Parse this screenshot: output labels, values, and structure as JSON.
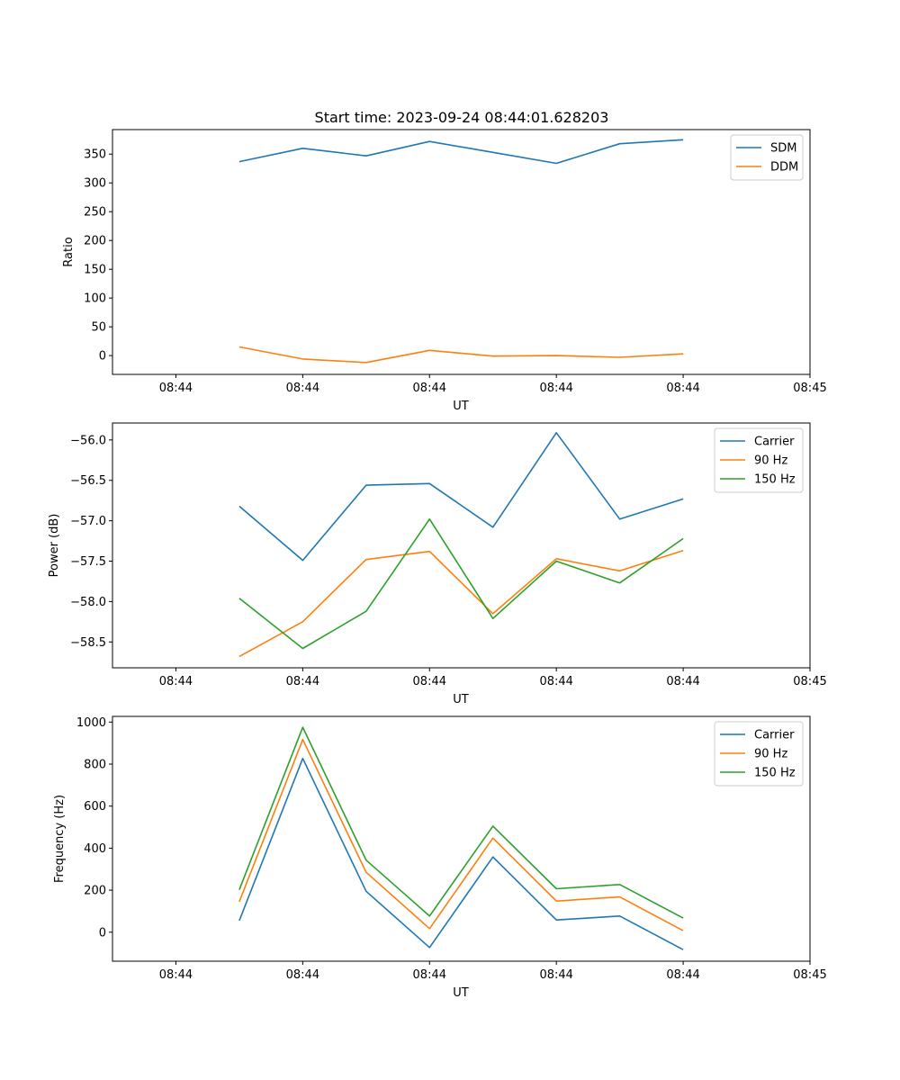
{
  "figure_title": "Start time: 2023-09-24 08:44:01.628203",
  "colors": {
    "blue": "#1f77b4",
    "orange": "#ff7f0e",
    "green": "#2ca02c"
  },
  "chart_data": [
    {
      "type": "line",
      "title": "Start time: 2023-09-24 08:44:01.628203",
      "xlabel": "UT",
      "ylabel": "Ratio",
      "x": [
        0.5,
        1.0,
        1.5,
        2.0,
        2.5,
        3.0,
        3.5,
        4.0
      ],
      "xlim": [
        -0.5,
        5.0
      ],
      "xticks": [
        0,
        1,
        2,
        3,
        4,
        5
      ],
      "xtick_labels": [
        "08:44",
        "08:44",
        "08:44",
        "08:44",
        "08:44",
        "08:45"
      ],
      "ylim": [
        -32.7,
        392.6
      ],
      "yticks": [
        0,
        50,
        100,
        150,
        200,
        250,
        300,
        350
      ],
      "ytick_labels": [
        "0",
        "50",
        "100",
        "150",
        "200",
        "250",
        "300",
        "350"
      ],
      "legend_position": "top-right",
      "grid": false,
      "series": [
        {
          "name": "SDM",
          "color": "#1f77b4",
          "values": [
            337,
            360,
            347,
            372,
            353,
            334,
            368,
            375
          ]
        },
        {
          "name": "DDM",
          "color": "#ff7f0e",
          "values": [
            15,
            -6,
            -12,
            9,
            -1,
            0,
            -3,
            3
          ]
        }
      ]
    },
    {
      "type": "line",
      "title": "",
      "xlabel": "UT",
      "ylabel": "Power (dB)",
      "x": [
        0.5,
        1.0,
        1.5,
        2.0,
        2.5,
        3.0,
        3.5,
        4.0
      ],
      "xlim": [
        -0.5,
        5.0
      ],
      "xticks": [
        0,
        1,
        2,
        3,
        4,
        5
      ],
      "xtick_labels": [
        "08:44",
        "08:44",
        "08:44",
        "08:44",
        "08:44",
        "08:45"
      ],
      "ylim": [
        -58.82,
        -55.79
      ],
      "yticks": [
        -58.5,
        -58.0,
        -57.5,
        -57.0,
        -56.5,
        -56.0
      ],
      "ytick_labels": [
        "−58.5",
        "−58.0",
        "−57.5",
        "−57.0",
        "−56.5",
        "−56.0"
      ],
      "legend_position": "top-right",
      "grid": false,
      "series": [
        {
          "name": "Carrier",
          "color": "#1f77b4",
          "values": [
            -56.82,
            -57.49,
            -56.56,
            -56.54,
            -57.08,
            -55.91,
            -56.98,
            -56.73
          ]
        },
        {
          "name": "90 Hz",
          "color": "#ff7f0e",
          "values": [
            -58.68,
            -58.25,
            -57.48,
            -57.38,
            -58.15,
            -57.47,
            -57.62,
            -57.37
          ]
        },
        {
          "name": "150 Hz",
          "color": "#2ca02c",
          "values": [
            -57.96,
            -58.58,
            -58.12,
            -56.98,
            -58.21,
            -57.5,
            -57.77,
            -57.22
          ]
        }
      ]
    },
    {
      "type": "line",
      "title": "",
      "xlabel": "UT",
      "ylabel": "Frequency (Hz)",
      "x": [
        0.5,
        1.0,
        1.5,
        2.0,
        2.5,
        3.0,
        3.5,
        4.0
      ],
      "xlim": [
        -0.5,
        5.0
      ],
      "xticks": [
        0,
        1,
        2,
        3,
        4,
        5
      ],
      "xtick_labels": [
        "08:44",
        "08:44",
        "08:44",
        "08:44",
        "08:44",
        "08:45"
      ],
      "ylim": [
        -138,
        1027
      ],
      "yticks": [
        0,
        200,
        400,
        600,
        800,
        1000
      ],
      "ytick_labels": [
        "0",
        "200",
        "400",
        "600",
        "800",
        "1000"
      ],
      "legend_position": "top-right",
      "grid": false,
      "series": [
        {
          "name": "Carrier",
          "color": "#1f77b4",
          "values": [
            55,
            827,
            195,
            -73,
            358,
            58,
            77,
            -83
          ]
        },
        {
          "name": "90 Hz",
          "color": "#ff7f0e",
          "values": [
            145,
            917,
            285,
            17,
            448,
            148,
            168,
            7
          ]
        },
        {
          "name": "150 Hz",
          "color": "#2ca02c",
          "values": [
            202,
            975,
            343,
            77,
            505,
            207,
            227,
            67
          ]
        }
      ]
    }
  ]
}
